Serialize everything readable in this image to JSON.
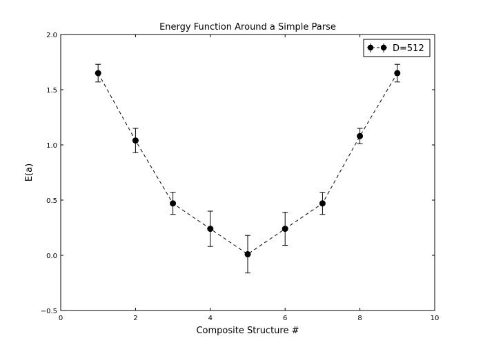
{
  "chart_data": {
    "type": "line",
    "title": "Energy Function Around a Simple Parse",
    "xlabel": "Composite Structure #",
    "ylabel": "E(a)",
    "xlim": [
      0,
      10
    ],
    "ylim": [
      -0.5,
      2.0
    ],
    "xticks": [
      0,
      2,
      4,
      6,
      8,
      10
    ],
    "xtick_labels": [
      "0",
      "2",
      "4",
      "6",
      "8",
      "10"
    ],
    "yticks": [
      -0.5,
      0.0,
      0.5,
      1.0,
      1.5,
      2.0
    ],
    "ytick_labels": [
      "−0.5",
      "0.0",
      "0.5",
      "1.0",
      "1.5",
      "2.0"
    ],
    "grid": false,
    "legend_position": "top-right",
    "series": [
      {
        "name": "D=512",
        "color": "#000000",
        "line_style": "dashed",
        "marker": "circle",
        "x": [
          1,
          2,
          3,
          4,
          5,
          6,
          7,
          8,
          9
        ],
        "y": [
          1.65,
          1.04,
          0.47,
          0.24,
          0.01,
          0.24,
          0.47,
          1.08,
          1.65
        ],
        "yerr": [
          0.08,
          0.11,
          0.1,
          0.16,
          0.17,
          0.15,
          0.1,
          0.07,
          0.08
        ]
      }
    ]
  }
}
